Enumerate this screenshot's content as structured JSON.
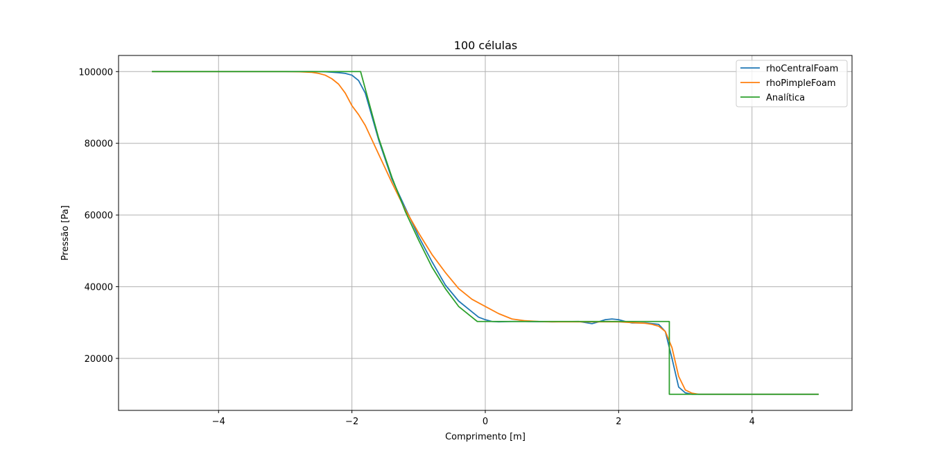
{
  "chart_data": {
    "type": "line",
    "title": "100 células",
    "xlabel": "Comprimento [m]",
    "ylabel": "Pressão [Pa]",
    "xlim": [
      -5.5,
      5.5
    ],
    "ylim": [
      5500,
      104500
    ],
    "grid": true,
    "legend_position": "top-right",
    "x_ticks": [
      -4,
      -2,
      0,
      2,
      4
    ],
    "x_tick_labels": [
      "−4",
      "−2",
      "0",
      "2",
      "4"
    ],
    "y_ticks": [
      20000,
      40000,
      60000,
      80000,
      100000
    ],
    "y_tick_labels": [
      "20000",
      "40000",
      "60000",
      "80000",
      "100000"
    ],
    "series": [
      {
        "name": "rhoCentralFoam",
        "color": "#1f77b4",
        "x": [
          -5,
          -2.6,
          -2.4,
          -2.2,
          -2.1,
          -2.0,
          -1.9,
          -1.8,
          -1.6,
          -1.4,
          -1.2,
          -1.0,
          -0.8,
          -0.6,
          -0.4,
          -0.2,
          -0.1,
          0.0,
          0.1,
          0.2,
          0.4,
          0.6,
          1.0,
          1.4,
          1.5,
          1.6,
          1.7,
          1.8,
          1.9,
          2.0,
          2.1,
          2.2,
          2.4,
          2.6,
          2.7,
          2.8,
          2.9,
          3.0,
          3.1,
          3.2,
          5.0
        ],
        "y": [
          100000,
          100000,
          99950,
          99700,
          99500,
          99000,
          97500,
          94000,
          81000,
          70000,
          62000,
          54000,
          47000,
          40500,
          36000,
          33000,
          31500,
          30800,
          30300,
          30200,
          30300,
          30300,
          30200,
          30300,
          30000,
          29700,
          30200,
          30800,
          31000,
          30800,
          30300,
          29900,
          29900,
          29500,
          27500,
          20000,
          12000,
          10400,
          10000,
          10000,
          10000
        ]
      },
      {
        "name": "rhoPimpleFoam",
        "color": "#ff7f0e",
        "x": [
          -5,
          -3.0,
          -2.8,
          -2.6,
          -2.5,
          -2.4,
          -2.3,
          -2.2,
          -2.1,
          -2.0,
          -1.9,
          -1.8,
          -1.6,
          -1.4,
          -1.2,
          -1.0,
          -0.8,
          -0.6,
          -0.4,
          -0.2,
          0.0,
          0.2,
          0.4,
          0.6,
          0.8,
          1.0,
          1.5,
          2.0,
          2.2,
          2.4,
          2.5,
          2.6,
          2.7,
          2.8,
          2.9,
          3.0,
          3.1,
          3.2,
          5.0
        ],
        "y": [
          100000,
          100000,
          99950,
          99800,
          99500,
          99000,
          98000,
          96500,
          94000,
          90500,
          88000,
          85000,
          77000,
          69000,
          61500,
          55000,
          49000,
          44000,
          39500,
          36500,
          34500,
          32500,
          31000,
          30500,
          30300,
          30200,
          30200,
          30200,
          30000,
          29800,
          29500,
          29000,
          27500,
          23000,
          15000,
          11200,
          10300,
          10000,
          10000
        ]
      },
      {
        "name": "Analítica",
        "color": "#2ca02c",
        "x": [
          -5,
          -1.87,
          -1.6,
          -1.4,
          -1.2,
          -1.0,
          -0.8,
          -0.6,
          -0.4,
          -0.2,
          -0.12,
          2.76,
          2.76,
          2.78,
          5.0
        ],
        "y": [
          100000,
          100000,
          81500,
          70500,
          61000,
          53000,
          45500,
          39500,
          34500,
          31500,
          30300,
          30300,
          10000,
          10000,
          10000
        ]
      }
    ]
  }
}
